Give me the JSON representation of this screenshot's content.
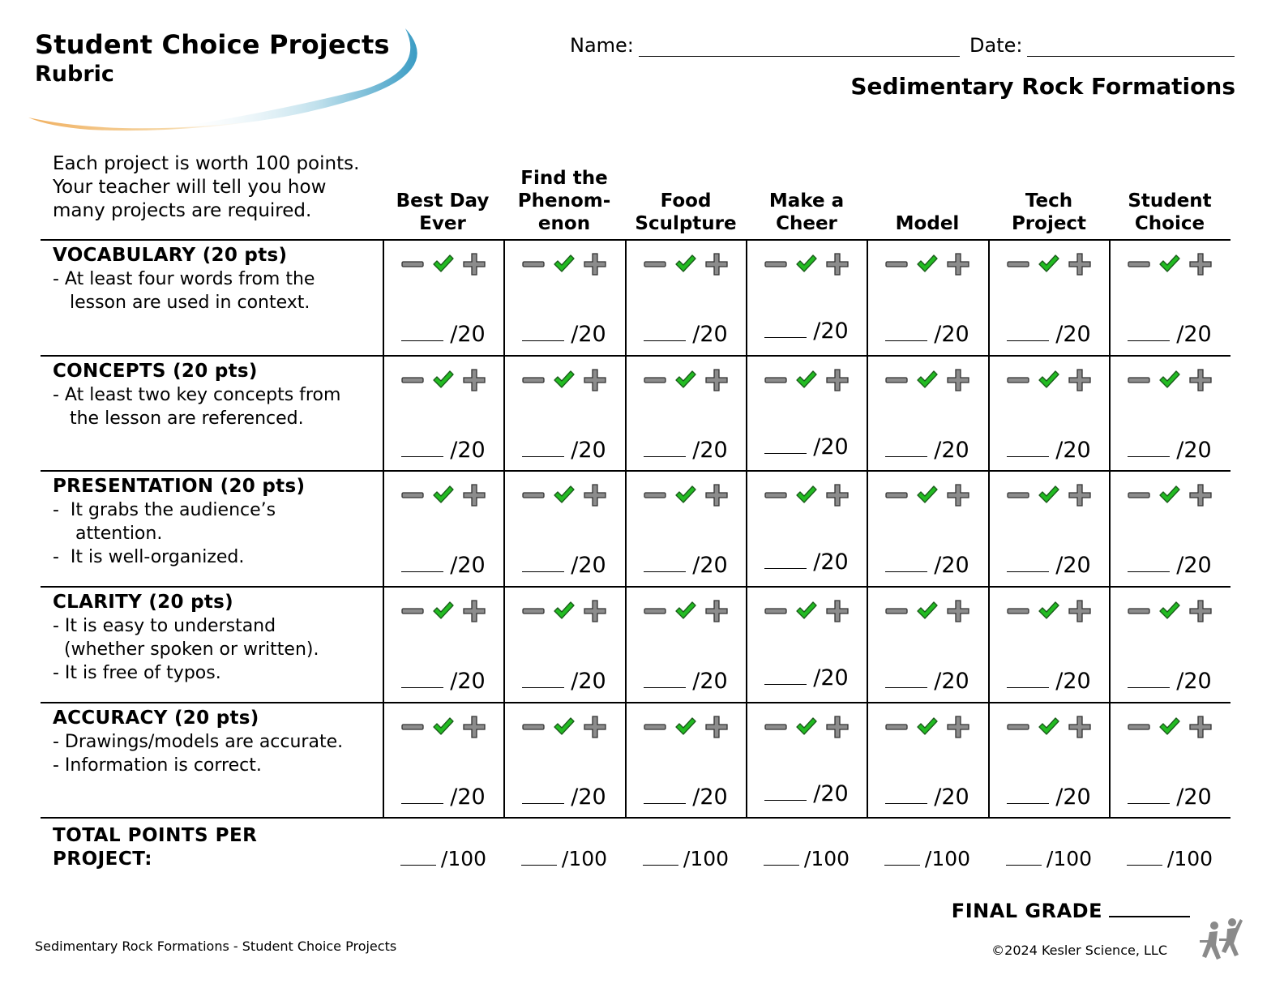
{
  "header": {
    "title": "Student Choice Projects",
    "subtitle": "Rubric",
    "name_label": "Name:",
    "date_label": "Date:",
    "topic": "Sedimentary Rock Formations"
  },
  "intro": "Each project is worth 100 points. Your teacher will tell you how many projects are required.",
  "columns": [
    {
      "line1": "Best Day",
      "line2": "Ever",
      "line0": ""
    },
    {
      "line0": "Find the",
      "line1": "Phenom-",
      "line2": "enon"
    },
    {
      "line0": "",
      "line1": "Food",
      "line2": "Sculpture"
    },
    {
      "line0": "",
      "line1": "Make a",
      "line2": "Cheer"
    },
    {
      "line0": "",
      "line1": "",
      "line2": "Model"
    },
    {
      "line0": "",
      "line1": "Tech",
      "line2": "Project"
    },
    {
      "line0": "",
      "line1": "Student",
      "line2": "Choice"
    }
  ],
  "criteria": [
    {
      "name": "VOCABULARY (20 pts)",
      "bullets": [
        "- At least four words from the",
        "   lesson are used in context."
      ]
    },
    {
      "name": "CONCEPTS (20 pts)",
      "bullets": [
        "- At least two key concepts from",
        "   the lesson are referenced."
      ]
    },
    {
      "name": "PRESENTATION (20 pts)",
      "bullets": [
        "-  It grabs the audience’s",
        "    attention.",
        "-  It is well-organized."
      ]
    },
    {
      "name": "CLARITY (20 pts)",
      "bullets": [
        "- It is easy to understand",
        "  (whether spoken or written).",
        "- It is free of typos."
      ]
    },
    {
      "name": "ACCURACY (20 pts)",
      "bullets": [
        "- Drawings/models are accurate.",
        "- Information is correct."
      ]
    }
  ],
  "score_text": "/20",
  "marks_icons": [
    "minus-icon",
    "checkmark-icon",
    "plus-icon"
  ],
  "colors": {
    "check": "#22bb22",
    "minus_plus": "#8c8c8c",
    "swoosh_blue": "#4aa3c8",
    "swoosh_orange": "#f0b060"
  },
  "total_label": "TOTAL POINTS PER PROJECT:",
  "total_text": "/100",
  "final_grade_label": "FINAL GRADE",
  "footer_left": "Sedimentary Rock Formations - Student Choice Projects",
  "footer_right": "©2024  Kesler Science, LLC"
}
